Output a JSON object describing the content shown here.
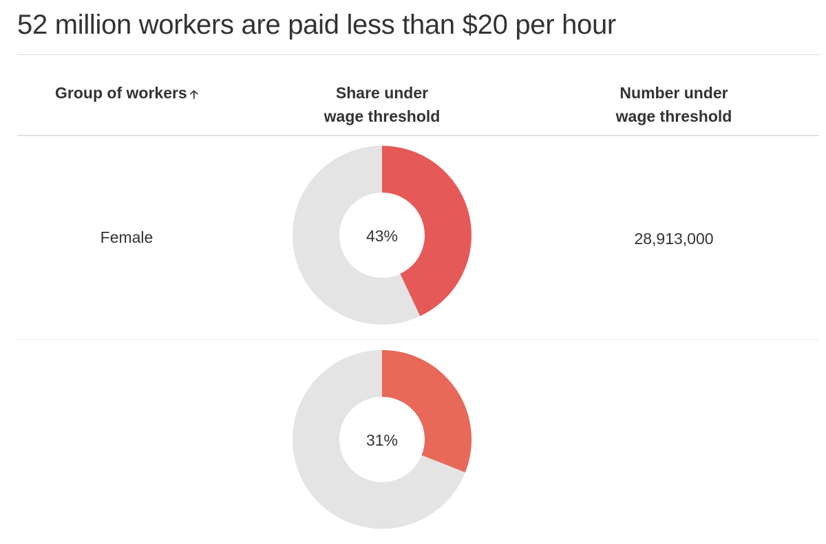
{
  "title": "52 million workers are paid less than $20 per hour",
  "table": {
    "headers": {
      "group": "Group of workers",
      "share_line1": "Share under",
      "share_line2": "wage threshold",
      "number_line1": "Number under",
      "number_line2": "wage threshold",
      "sort_icon": "arrow-up-icon"
    },
    "rows": [
      {
        "group": "Female",
        "share": 43,
        "share_label": "43%",
        "number": "28,913,000",
        "color": "#e55a58"
      },
      {
        "group": "",
        "share": 31,
        "share_label": "31%",
        "number": "",
        "color": "#e8685a"
      }
    ],
    "track_color": "#e4e4e4"
  },
  "chart_data": {
    "type": "table",
    "title": "52 million workers are paid less than $20 per hour",
    "columns": [
      "Group of workers",
      "Share under wage threshold",
      "Number under wage threshold"
    ],
    "rows": [
      {
        "group": "Female",
        "share_percent": 43,
        "number": 28913000
      },
      {
        "group": "",
        "share_percent": 31,
        "number": null
      }
    ]
  }
}
